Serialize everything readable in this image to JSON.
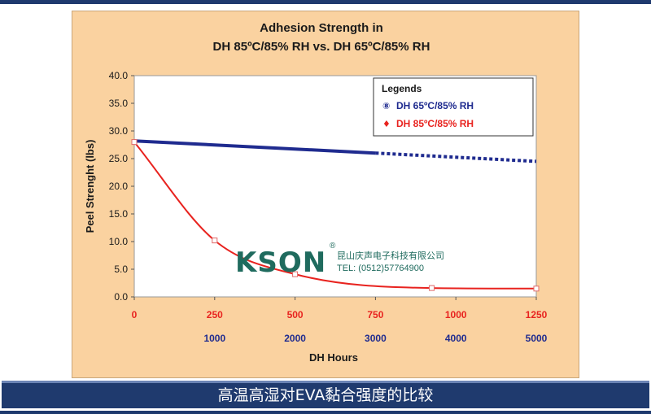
{
  "chart_data": {
    "type": "line",
    "title_line1": "Adhesion Strength in",
    "title_line2": "DH 85ºC/85% RH vs. DH 65ºC/85% RH",
    "ylabel": "Peel Strenght (lbs)",
    "xlabel": "DH Hours",
    "ylim": [
      0,
      40
    ],
    "yticks": [
      "0.0",
      "5.0",
      "10.0",
      "15.0",
      "20.0",
      "25.0",
      "30.0",
      "35.0",
      "40.0"
    ],
    "x_primary_ticks": [
      "0",
      "250",
      "500",
      "750",
      "1000",
      "1250"
    ],
    "x_secondary_ticks": [
      "1000",
      "2000",
      "3000",
      "4000",
      "5000"
    ],
    "legend_title": "Legends",
    "series": [
      {
        "name": "DH 65ºC/85% RH",
        "marker": "⑧",
        "color": "#1f2b8f",
        "x": [
          0,
          750,
          1250
        ],
        "y": [
          28.2,
          26.0,
          24.5
        ],
        "dashed_after_x": 750
      },
      {
        "name": "DH 85ºC/85% RH",
        "marker": "♦",
        "color": "#e8231f",
        "x": [
          0,
          250,
          500,
          925,
          1250
        ],
        "y": [
          28.0,
          10.2,
          4.1,
          1.6,
          1.5
        ]
      }
    ],
    "watermark_logo": "KSON",
    "watermark_company": "昆山庆声电子科技有限公司",
    "watermark_tel": "TEL: (0512)57764900"
  },
  "caption": "高温高湿对EVA黏合强度的比较",
  "colors": {
    "primary_axis_labels": "#e8231f",
    "secondary_axis_labels": "#1f2b8f",
    "logo": "#1f6b5e"
  }
}
